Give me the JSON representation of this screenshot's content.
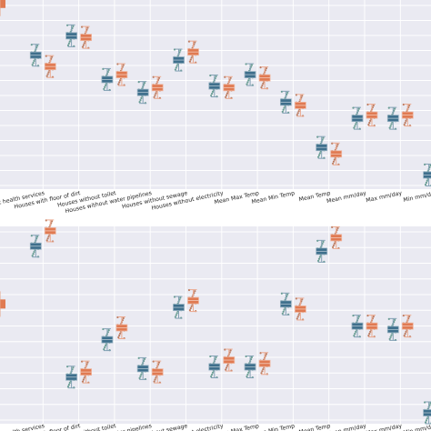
{
  "chart_data": [
    {
      "type": "box",
      "title": "",
      "xlabel": "",
      "ylabel": "",
      "grid": true,
      "categories": [
        "Population without health services",
        "Houses with floor of dirt",
        "Houses without toilet",
        "Houses without water pipelines",
        "Houses without sewage",
        "Houses without electricity",
        "Mean Max Temp",
        "Mean Min Temp",
        "Mean Temp",
        "Mean mm/day",
        "Max mm/day",
        "Min mm/day"
      ],
      "tick_labels": [
        "Population without health services",
        "Houses with floor of dirt",
        "Houses without toilet",
        "Houses without water pipelines",
        "Houses without sewage",
        "Houses without electricity",
        "Mean Max Temp",
        "Mean Min Temp",
        "Mean Temp",
        "Mean mm/day",
        "Max mm/day",
        "Min mm/day"
      ],
      "series": [
        {
          "color": "#3e6f8c",
          "values": [
            0.76,
            0.88,
            0.61,
            0.53,
            0.73,
            0.57,
            0.64,
            0.47,
            0.19,
            0.37,
            0.37,
            0.02
          ]
        },
        {
          "color": "#e07a52",
          "values": [
            0.69,
            0.87,
            0.64,
            0.56,
            0.78,
            0.56,
            0.62,
            0.45,
            0.15,
            0.39,
            0.39,
            0.04
          ]
        }
      ],
      "extra_left": {
        "teal": null,
        "orange": 1.08
      }
    },
    {
      "type": "box",
      "title": "",
      "xlabel": "",
      "ylabel": "",
      "grid": true,
      "categories": [
        "Population without health services",
        "Houses with floor of dirt",
        "Houses without toilet",
        "Houses without water pipelines",
        "Houses without sewage",
        "Houses without electricity",
        "Mean Max Temp",
        "Mean Min Temp",
        "Mean Temp",
        "Mean mm/day",
        "Max mm/day",
        "Min mm/day"
      ],
      "tick_labels": [
        "Population without health services",
        "Houses with floor of dirt",
        "Houses without toilet",
        "Houses without water pipelines",
        "Houses without sewage",
        "Houses without electricity",
        "Mean Max Temp",
        "Mean Min Temp",
        "Mean Temp",
        "Mean mm/day",
        "Max mm/day",
        "Min mm/day"
      ],
      "series": [
        {
          "color": "#3e6f8c",
          "values": [
            0.98,
            0.21,
            0.43,
            0.26,
            0.62,
            0.27,
            0.27,
            0.64,
            0.95,
            0.51,
            0.49,
            0.0
          ]
        },
        {
          "color": "#e07a52",
          "values": [
            1.07,
            0.24,
            0.5,
            0.24,
            0.66,
            0.31,
            0.29,
            0.61,
            1.03,
            0.51,
            0.51,
            0.0
          ]
        }
      ],
      "extra_left": {
        "teal": null,
        "orange": 0.64
      }
    }
  ]
}
